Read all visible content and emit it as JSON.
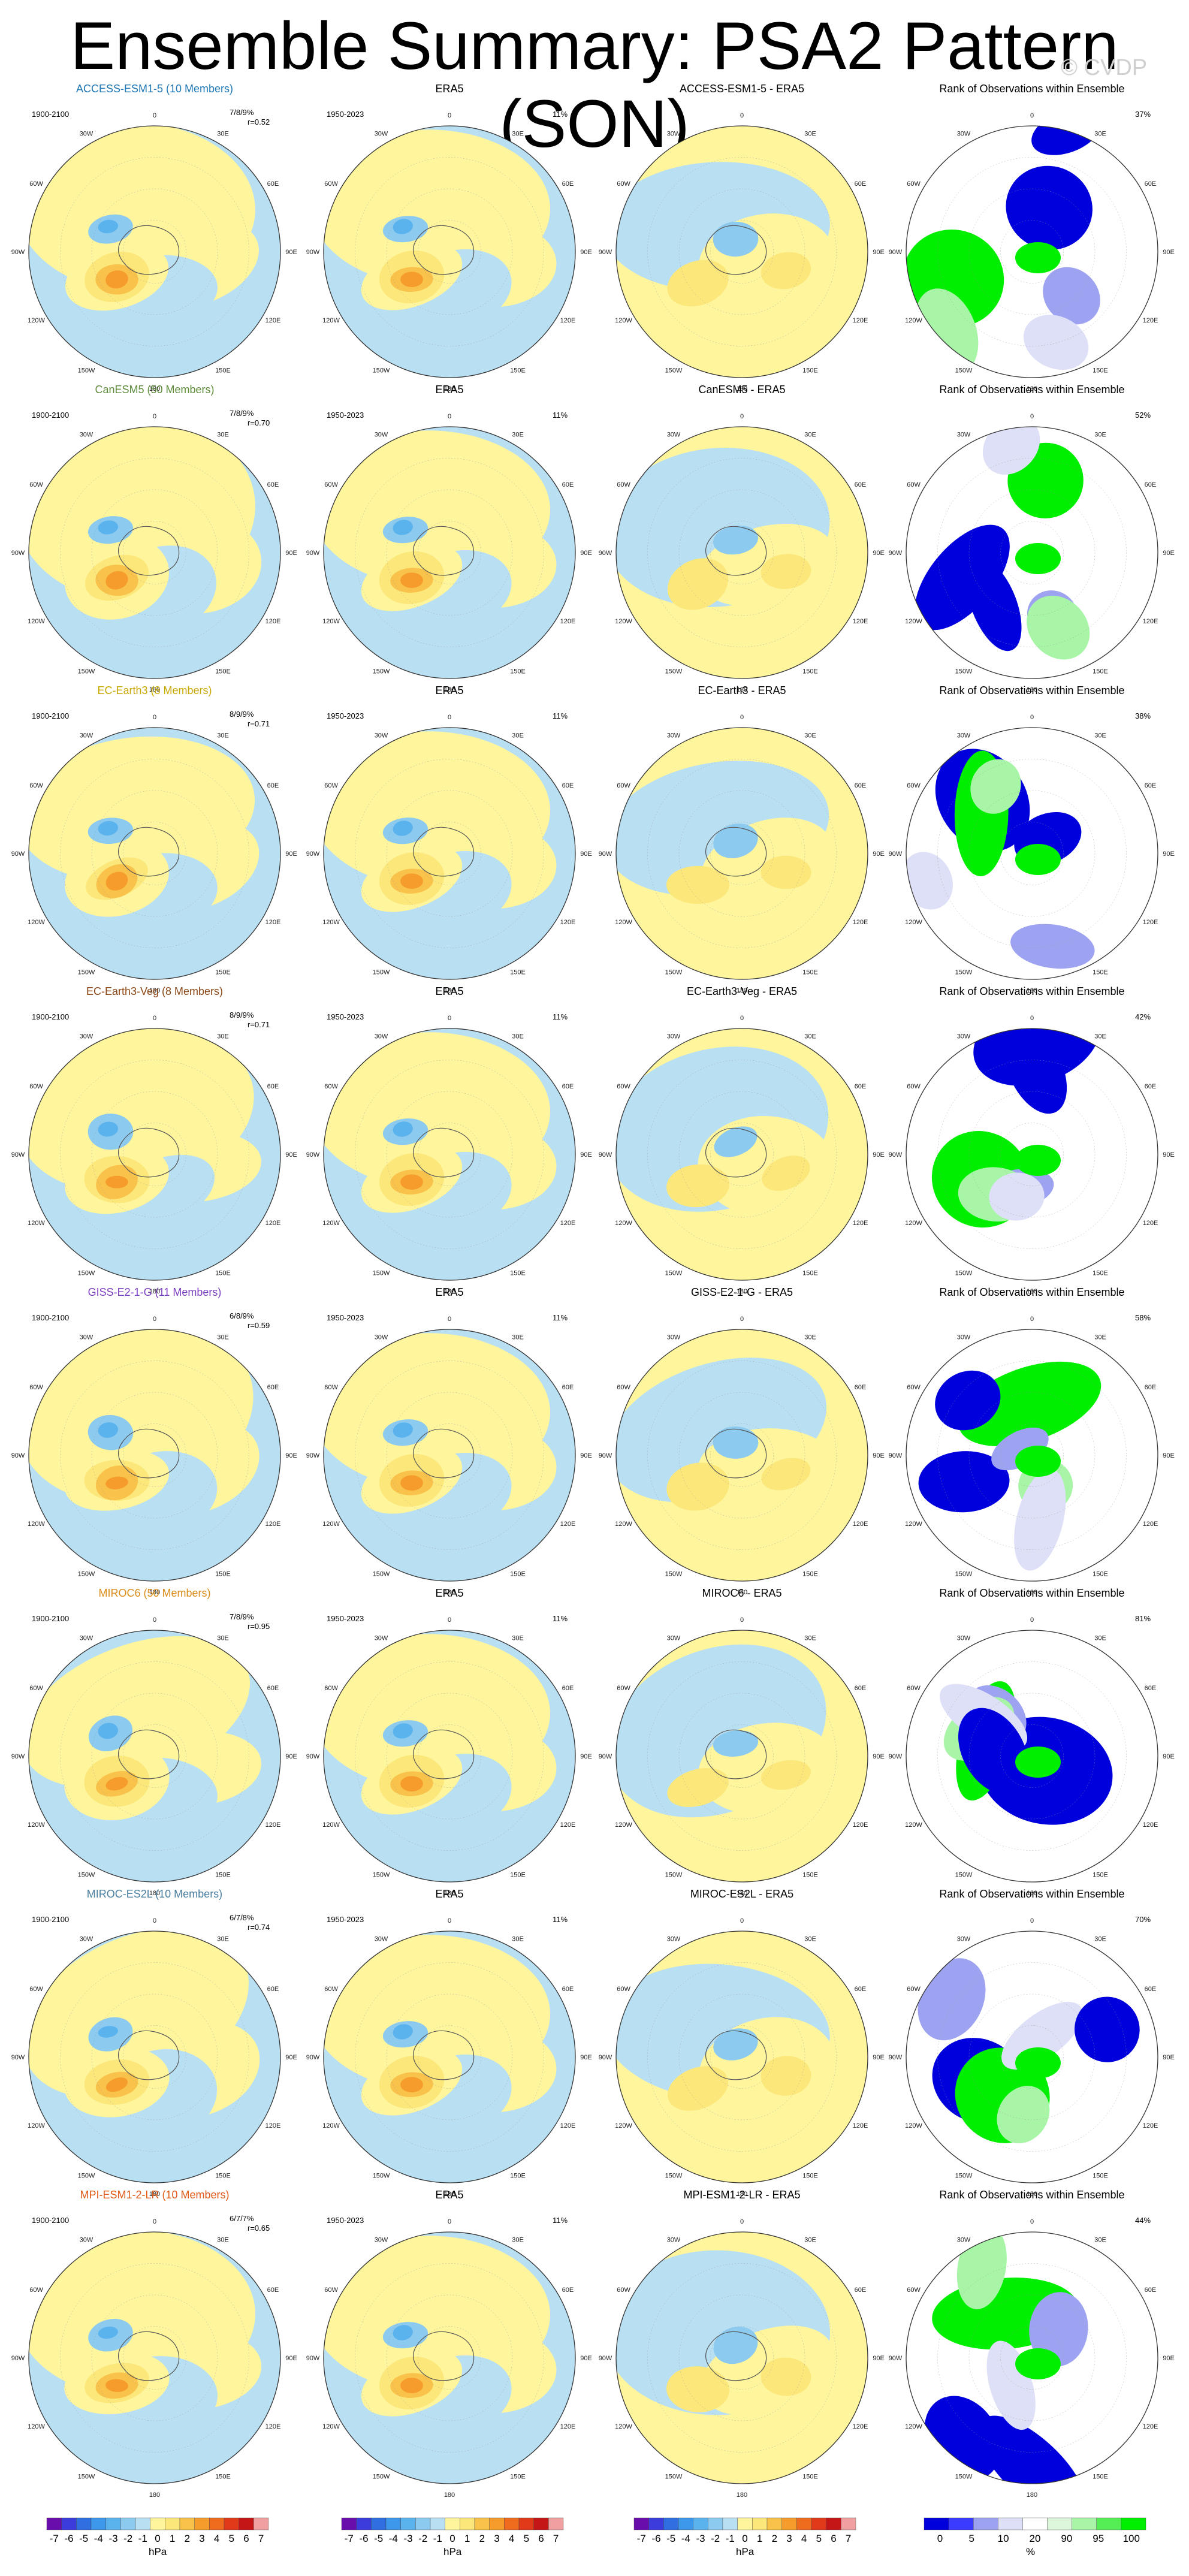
{
  "title": "Ensemble Summary: PSA2 Pattern (SON)",
  "watermark": "© CVDP",
  "obs_label": "ERA5",
  "obs_period": "1950-2023",
  "obs_pct": "11%",
  "rank_title": "Rank of Observations within Ensemble",
  "lon_labels": [
    "0",
    "30E",
    "60E",
    "90E",
    "120E",
    "150E",
    "180",
    "150W",
    "120W",
    "90W",
    "60W",
    "30W"
  ],
  "colors": {
    "neg": [
      "#6a0dad",
      "#3c3cdc",
      "#2f6fe0",
      "#3d97ea",
      "#5bb3ee",
      "#8ccaf0",
      "#b9dff2"
    ],
    "pos": [
      "#fff59d",
      "#fce77a",
      "#f9c24a",
      "#f59c2c",
      "#ef6c1f",
      "#e03a1a",
      "#c41616",
      "#f0a0a0"
    ],
    "rank": [
      "#0000dd",
      "#3b3bff",
      "#9da3f0",
      "#dde0f7",
      "#ffffff",
      "#ddf7dd",
      "#a8f5a8",
      "#55ee55",
      "#00ee00"
    ],
    "model_title": [
      "#1f77b4",
      "#5e8c3a",
      "#c8a800",
      "#8b4513",
      "#7a3fc0",
      "#d98c1a",
      "#4a7fa0",
      "#e05a1a"
    ]
  },
  "models": [
    {
      "name": "ACCESS-ESM1-5 (10 Members)",
      "diff": "ACCESS-ESM1-5 - ERA5",
      "period": "1900-2100",
      "score": "7/8/9%",
      "r": "r=0.52",
      "rank_pct": "37%"
    },
    {
      "name": "CanESM5 (50 Members)",
      "diff": "CanESM5 - ERA5",
      "period": "1900-2100",
      "score": "7/8/9%",
      "r": "r=0.70",
      "rank_pct": "52%"
    },
    {
      "name": "EC-Earth3 (8 Members)",
      "diff": "EC-Earth3 - ERA5",
      "period": "1900-2100",
      "score": "8/9/9%",
      "r": "r=0.71",
      "rank_pct": "38%"
    },
    {
      "name": "EC-Earth3-Veg (8 Members)",
      "diff": "EC-Earth3-Veg - ERA5",
      "period": "1900-2100",
      "score": "8/9/9%",
      "r": "r=0.71",
      "rank_pct": "42%"
    },
    {
      "name": "GISS-E2-1-G (11 Members)",
      "diff": "GISS-E2-1-G - ERA5",
      "period": "1900-2100",
      "score": "6/8/9%",
      "r": "r=0.59",
      "rank_pct": "58%"
    },
    {
      "name": "MIROC6 (50 Members)",
      "diff": "MIROC6 - ERA5",
      "period": "1900-2100",
      "score": "7/8/9%",
      "r": "r=0.95",
      "rank_pct": "81%"
    },
    {
      "name": "MIROC-ES2L (10 Members)",
      "diff": "MIROC-ES2L - ERA5",
      "period": "1900-2100",
      "score": "6/7/8%",
      "r": "r=0.74",
      "rank_pct": "70%"
    },
    {
      "name": "MPI-ESM1-2-LR (10 Members)",
      "diff": "MPI-ESM1-2-LR - ERA5",
      "period": "1900-2100",
      "score": "6/7/7%",
      "r": "r=0.65",
      "rank_pct": "44%"
    }
  ],
  "chart_data": {
    "type": "heatmap",
    "title": "Ensemble Summary: PSA2 Pattern (SON)",
    "colorbar_hpa": {
      "ticks": [
        "-7",
        "-6",
        "-5",
        "-4",
        "-3",
        "-2",
        "-1",
        "0",
        "1",
        "2",
        "3",
        "4",
        "5",
        "6",
        "7"
      ],
      "label": "hPa"
    },
    "colorbar_rank": {
      "ticks": [
        "0",
        "5",
        "10",
        "20",
        "90",
        "95",
        "100"
      ],
      "label": "%"
    }
  }
}
